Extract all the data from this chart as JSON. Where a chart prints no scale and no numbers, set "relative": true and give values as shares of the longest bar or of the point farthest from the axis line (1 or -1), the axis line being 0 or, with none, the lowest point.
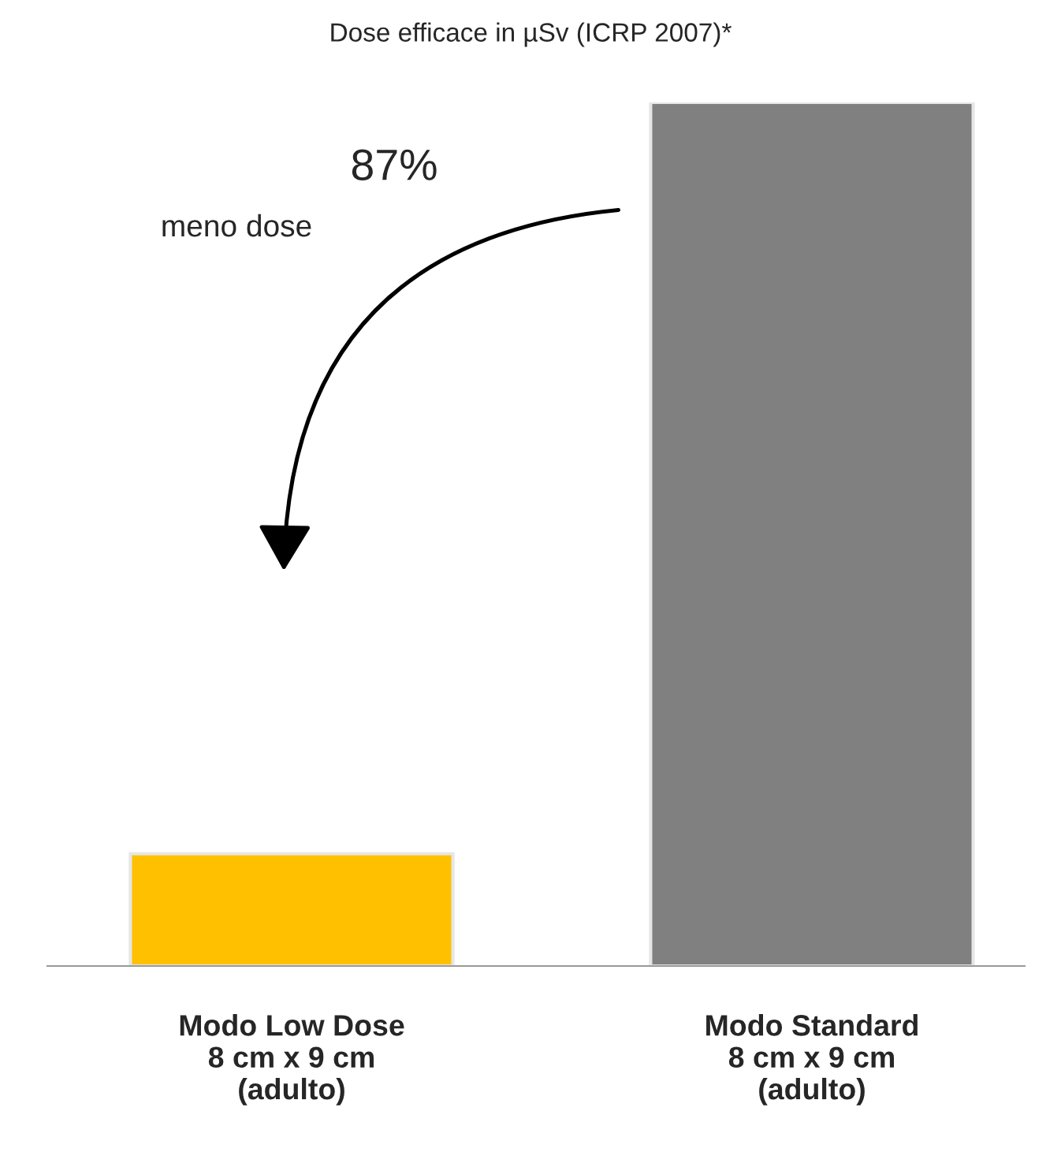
{
  "chart_data": {
    "type": "bar",
    "title": "Dose efficace in µSv (ICRP 2007)*",
    "relative": true,
    "categories": [
      "Modo Low Dose\n8 cm x 9 cm\n(adulto)",
      "Modo Standard\n8 cm x 9 cm\n(adulto)"
    ],
    "values": [
      0.13,
      1
    ],
    "colors": [
      "#ffc000",
      "#808080"
    ],
    "annotations": [
      "87%",
      "meno dose"
    ],
    "grid": false,
    "legend": false
  }
}
